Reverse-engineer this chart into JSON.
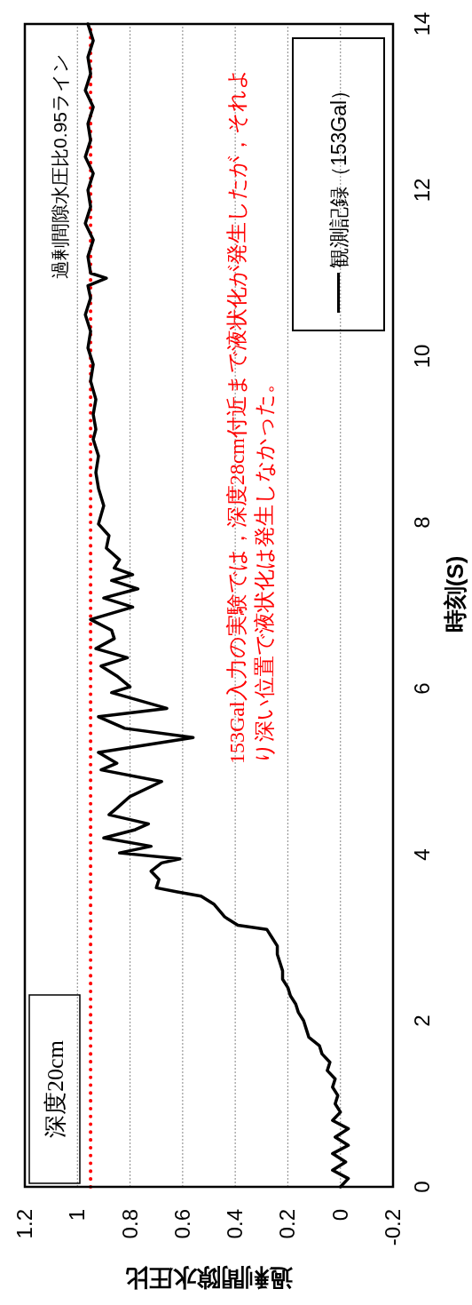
{
  "chart_data": {
    "type": "line",
    "xlabel": "過剰間隙水圧比",
    "y2label": "時刻(S)",
    "xlim": [
      1.2,
      -0.2
    ],
    "xticks": [
      -0.2,
      0,
      0.2,
      0.4,
      0.6,
      0.8,
      1,
      1.2
    ],
    "y2lim": [
      0,
      14
    ],
    "y2ticks": [
      0,
      2,
      4,
      6,
      8,
      10,
      12,
      14
    ],
    "grid": "x",
    "legend": "top right",
    "line_style": "solid",
    "ref_lines": [
      {
        "axis": "x",
        "value": 0.95,
        "label": "過剰間隙水圧比0.95ライン",
        "color": "#ff0000",
        "line_style": "dotted"
      }
    ],
    "annotations": [
      "深度20cm",
      "153Gal入力の実験では，深度28cm付近まで液状化が発生したが，それより深い位置で液状化は発生しなかった。"
    ],
    "series": [
      {
        "name": "観測記録（153Gal）",
        "color": "#000000",
        "axis": "y2",
        "values": [
          0.0,
          0.1,
          0.2,
          0.3,
          0.4,
          0.5,
          0.6,
          0.7,
          0.8,
          0.9,
          1.0,
          1.1,
          1.2,
          1.3,
          1.4,
          1.5,
          1.6,
          1.7,
          1.8,
          1.9,
          2.0,
          2.1,
          2.2,
          2.3,
          2.4,
          2.5,
          2.6,
          2.7,
          2.8,
          2.9,
          3.0,
          3.1,
          3.15,
          3.25,
          3.4,
          3.5,
          3.55,
          3.6,
          3.7,
          3.8,
          3.9,
          3.95,
          4.02,
          4.1,
          4.2,
          4.3,
          4.37,
          4.48,
          4.56,
          4.7,
          4.88,
          5.02,
          5.1,
          5.23,
          5.41,
          5.52,
          5.66,
          5.76,
          5.95,
          6.02,
          6.15,
          6.27,
          6.37,
          6.48,
          6.6,
          6.7,
          6.83,
          6.98,
          7.09,
          7.2,
          7.3,
          7.37,
          7.45,
          7.55,
          7.69,
          7.84,
          7.98,
          8.2,
          8.41,
          8.6,
          8.8,
          9.0,
          9.12,
          9.3,
          9.48,
          9.7,
          9.9,
          10.1,
          10.3,
          10.5,
          10.7,
          10.85,
          10.94,
          11.0,
          11.2,
          11.4,
          11.6,
          11.8,
          12.0,
          12.2,
          12.4,
          12.6,
          12.8,
          13.0,
          13.2,
          13.4,
          13.6,
          13.8,
          14.0
        ],
        "x": [
          0.0,
          -0.03,
          0.03,
          -0.02,
          0.03,
          -0.03,
          0.02,
          -0.03,
          0.03,
          0.0,
          0.02,
          0.01,
          0.03,
          0.02,
          0.05,
          0.04,
          0.07,
          0.08,
          0.12,
          0.13,
          0.14,
          0.16,
          0.17,
          0.19,
          0.2,
          0.22,
          0.22,
          0.23,
          0.24,
          0.24,
          0.26,
          0.28,
          0.39,
          0.44,
          0.48,
          0.53,
          0.62,
          0.7,
          0.69,
          0.72,
          0.68,
          0.61,
          0.84,
          0.72,
          0.9,
          0.78,
          0.73,
          0.88,
          0.85,
          0.8,
          0.68,
          0.91,
          0.85,
          0.92,
          0.56,
          0.82,
          0.92,
          0.66,
          0.87,
          0.8,
          0.85,
          0.91,
          0.81,
          0.93,
          0.86,
          0.87,
          0.95,
          0.79,
          0.9,
          0.77,
          0.87,
          0.79,
          0.86,
          0.84,
          0.89,
          0.88,
          0.92,
          0.9,
          0.92,
          0.93,
          0.92,
          0.94,
          0.93,
          0.94,
          0.93,
          0.95,
          0.94,
          0.96,
          0.95,
          0.97,
          0.95,
          0.96,
          0.89,
          0.95,
          0.96,
          0.94,
          0.97,
          0.95,
          0.96,
          0.94,
          0.97,
          0.95,
          0.96,
          0.94,
          0.97,
          0.95,
          0.96,
          0.94,
          0.96
        ]
      }
    ]
  }
}
